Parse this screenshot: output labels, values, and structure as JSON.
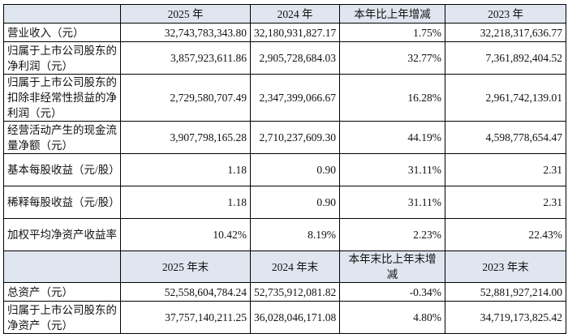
{
  "table": {
    "headers": [
      "",
      "2025 年",
      "2024 年",
      "本年比上年增减",
      "2023 年"
    ],
    "rows": [
      [
        "营业收入（元）",
        "32,743,783,343.80",
        "32,180,931,827.17",
        "1.75%",
        "32,218,317,636.77"
      ],
      [
        "归属于上市公司股东的净利润（元）",
        "3,857,923,611.86",
        "2,905,728,684.03",
        "32.77%",
        "7,361,892,404.52"
      ],
      [
        "归属于上市公司股东的扣除非经常性损益的净利润（元）",
        "2,729,580,707.49",
        "2,347,399,066.67",
        "16.28%",
        "2,961,742,139.01"
      ],
      [
        "经营活动产生的现金流量净额（元）",
        "3,907,798,165.28",
        "2,710,237,609.30",
        "44.19%",
        "4,598,778,654.47"
      ],
      [
        "基本每股收益（元/股）",
        "1.18",
        "0.90",
        "31.11%",
        "2.31"
      ],
      [
        "稀释每股收益（元/股）",
        "1.18",
        "0.90",
        "31.11%",
        "2.31"
      ],
      [
        "加权平均净资产收益率",
        "10.42%",
        "8.19%",
        "2.23%",
        "22.43%"
      ]
    ],
    "headers2": [
      "",
      "2025 年末",
      "2024 年末",
      "本年末比上年末增减",
      "2023 年末"
    ],
    "rows2": [
      [
        "总资产（元）",
        "52,558,604,784.24",
        "52,735,912,081.82",
        "-0.34%",
        "52,881,927,214.00"
      ],
      [
        "归属于上市公司股东的净资产（元）",
        "37,757,140,211.25",
        "36,028,046,171.08",
        "4.80%",
        "34,719,173,825.42"
      ]
    ]
  }
}
